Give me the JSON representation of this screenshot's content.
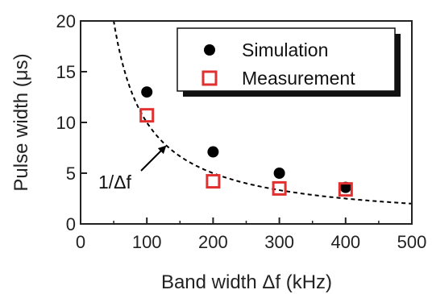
{
  "chart_data": {
    "type": "scatter",
    "xlabel": "Band width Δf (kHz)",
    "ylabel": "Pulse width (μs)",
    "xlim": [
      0,
      500
    ],
    "ylim": [
      0,
      20
    ],
    "xticks": [
      0,
      100,
      200,
      300,
      400,
      500
    ],
    "yticks": [
      0,
      5,
      10,
      15,
      20
    ],
    "grid": false,
    "legend_position": "top-right",
    "series": [
      {
        "name": "Simulation",
        "marker": "filled-circle",
        "color": "#000000",
        "x": [
          100,
          200,
          300,
          400
        ],
        "y": [
          13.0,
          7.1,
          5.0,
          3.6
        ]
      },
      {
        "name": "Measurement",
        "marker": "open-square",
        "color": "#e03030",
        "x": [
          100,
          200,
          300,
          400
        ],
        "y": [
          10.7,
          4.2,
          3.5,
          3.4
        ]
      }
    ],
    "reference_curve": {
      "label": "1/Δf",
      "style": "dashed",
      "color": "#000000",
      "constant": 1000
    }
  }
}
